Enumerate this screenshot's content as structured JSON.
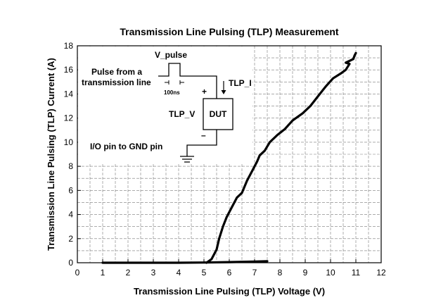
{
  "chart_data": {
    "type": "line",
    "title": "Transmission Line Pulsing (TLP) Measurement",
    "xlabel": "Transmission Line Pulsing (TLP) Voltage (V)",
    "ylabel": "Transmission Line Pulsing (TLP) Current (A)",
    "xlim": [
      0,
      12
    ],
    "ylim": [
      0,
      18
    ],
    "xticks": [
      0,
      1,
      2,
      3,
      4,
      5,
      6,
      7,
      8,
      9,
      10,
      11,
      12
    ],
    "yticks": [
      0,
      2,
      4,
      6,
      8,
      10,
      12,
      14,
      16,
      18
    ],
    "grid": true,
    "legend": "none",
    "series": [
      {
        "color": "#000000",
        "points": [
          [
            1.0,
            0.0
          ],
          [
            2.0,
            0.0
          ],
          [
            3.0,
            0.0
          ],
          [
            4.0,
            0.0
          ],
          [
            5.0,
            0.02
          ],
          [
            6.0,
            0.05
          ],
          [
            7.0,
            0.1
          ],
          [
            7.5,
            0.12
          ]
        ]
      },
      {
        "color": "#000000",
        "points": [
          [
            5.1,
            0.0
          ],
          [
            5.3,
            0.3
          ],
          [
            5.5,
            1.1
          ],
          [
            5.6,
            2.0
          ],
          [
            5.75,
            3.0
          ],
          [
            5.9,
            3.8
          ],
          [
            6.1,
            4.6
          ],
          [
            6.3,
            5.4
          ],
          [
            6.5,
            5.8
          ],
          [
            6.7,
            6.8
          ],
          [
            6.9,
            7.6
          ],
          [
            7.1,
            8.4
          ],
          [
            7.2,
            8.9
          ],
          [
            7.4,
            9.3
          ],
          [
            7.6,
            10.0
          ],
          [
            7.9,
            10.6
          ],
          [
            8.2,
            11.1
          ],
          [
            8.5,
            11.8
          ],
          [
            8.9,
            12.4
          ],
          [
            9.2,
            13.0
          ],
          [
            9.5,
            13.8
          ],
          [
            9.8,
            14.6
          ],
          [
            10.1,
            15.3
          ],
          [
            10.4,
            15.7
          ],
          [
            10.6,
            16.0
          ],
          [
            10.75,
            16.5
          ],
          [
            10.6,
            16.6
          ],
          [
            10.9,
            16.9
          ],
          [
            10.95,
            17.2
          ],
          [
            11.0,
            17.4
          ]
        ]
      }
    ],
    "annotations": {
      "v_pulse": "V_pulse",
      "pulse_line1": "Pulse from a",
      "pulse_line2": "transmission line",
      "width": "100ns",
      "tlp_i": "TLP_I",
      "tlp_v": "TLP_V",
      "dut": "DUT",
      "plus": "+",
      "minus": "–",
      "io_pin": "I/O pin to GND pin"
    }
  }
}
